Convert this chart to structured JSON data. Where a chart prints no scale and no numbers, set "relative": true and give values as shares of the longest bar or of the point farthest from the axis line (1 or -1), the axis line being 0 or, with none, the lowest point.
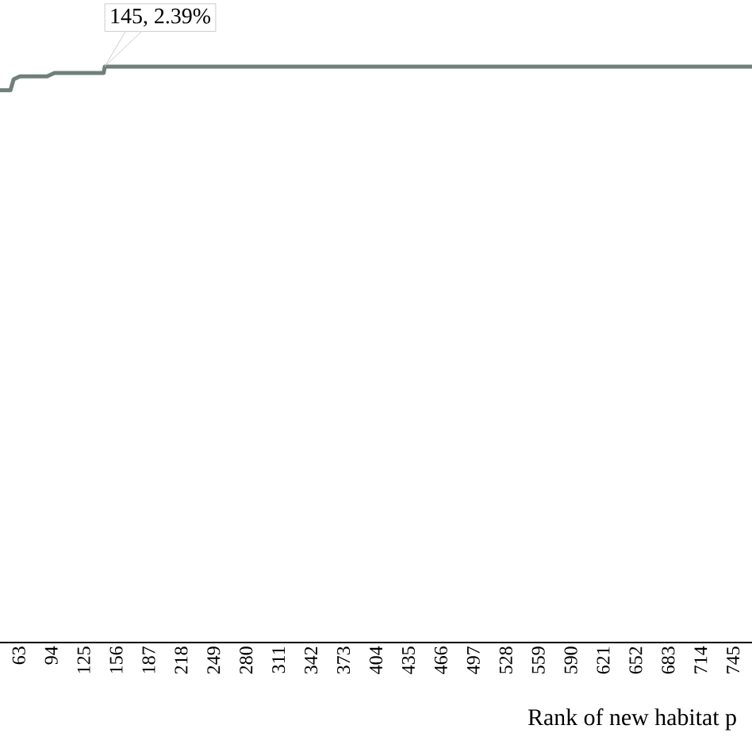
{
  "chart_data": {
    "type": "line",
    "relative": true,
    "xlabel": "Rank of new habitat p",
    "x": [
      45,
      55,
      58,
      64,
      90,
      97,
      144,
      145,
      763
    ],
    "series": [
      {
        "color": "#6f7f7a",
        "values": [
          0.959,
          0.959,
          0.978,
          0.983,
          0.983,
          0.989,
          0.989,
          1,
          1
        ]
      }
    ],
    "xlim": [
      45,
      763
    ],
    "xticks": [
      63,
      94,
      125,
      156,
      187,
      218,
      249,
      280,
      311,
      342,
      373,
      404,
      435,
      466,
      497,
      528,
      559,
      590,
      621,
      652,
      683,
      714,
      745
    ],
    "annotations": [
      {
        "text": "145, 2.39%",
        "x": 145,
        "y": 1
      }
    ],
    "marker": "none",
    "line_style": "solid"
  }
}
